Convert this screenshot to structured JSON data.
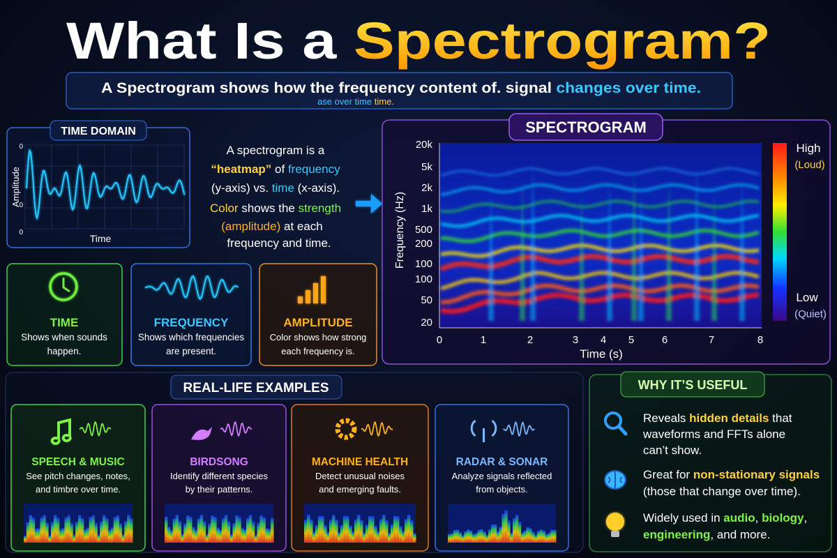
{
  "header": {
    "title": [
      "What Is a ",
      "Spectrogram?"
    ],
    "subtitle": [
      "A Spectrogram shows how the frequency content of. signal ",
      "changes over time."
    ],
    "subtitle_echo": [
      "ase over time ",
      "time."
    ]
  },
  "time_domain": {
    "label": "TIME DOMAIN",
    "y_axis": "Amplitude",
    "x_axis": "Time",
    "ticks": [
      "0",
      "0",
      "0"
    ]
  },
  "description": {
    "lines": [
      [
        "A spectrogram is a"
      ],
      [
        "“heatmap”",
        " of ",
        "frequency"
      ],
      [
        "(y-axis) vs. ",
        "time",
        " (x-axis)."
      ],
      [
        "Color",
        " shows the ",
        "strength"
      ],
      [
        "(amplitude)",
        " at each"
      ],
      [
        "frequency and time."
      ]
    ]
  },
  "concepts": [
    {
      "title": "TIME",
      "text": [
        "Shows when sounds",
        "happen."
      ]
    },
    {
      "title": "FREQUENCY",
      "text": [
        "Shows which frequencies",
        "are present."
      ]
    },
    {
      "title": "AMPLITUDE",
      "text": [
        "Color shows how strong",
        "each frequency is."
      ]
    }
  ],
  "spectrogram": {
    "title": "SPECTROGRAM",
    "y_axis": "Frequency (Hz)",
    "x_axis": "Time (s)",
    "yticks": [
      "20k",
      "5k",
      "2k",
      "1k",
      "500",
      "200",
      "100",
      "100",
      "50",
      "20"
    ],
    "xticks": [
      "0",
      "1",
      "2",
      "3",
      "4",
      "5",
      "6",
      "7",
      "8"
    ],
    "colorbar": {
      "high": "High",
      "high_note": "(Loud)",
      "low": "Low",
      "low_note": "(Quiet)"
    }
  },
  "examples": {
    "title": "REAL-LIFE EXAMPLES",
    "items": [
      {
        "title": "SPEECH & MUSIC",
        "text": [
          "See pitch changes, notes,",
          "and timbre over time."
        ]
      },
      {
        "title": "BIRDSONG",
        "text": [
          "Identify different species",
          "by their patterns."
        ]
      },
      {
        "title": "MACHINE HEALTH",
        "text": [
          "Detect unusual noises",
          "and emerging faults."
        ]
      },
      {
        "title": "RADAR & SONAR",
        "text": [
          "Analyze signals reflected",
          "from objects."
        ]
      }
    ]
  },
  "usefulness": {
    "title": "WHY IT’S USEFUL",
    "items": [
      {
        "lines": [
          [
            "Reveals ",
            "hidden details",
            " that"
          ],
          [
            "waveforms and FFTs alone"
          ],
          [
            "can’t show."
          ]
        ]
      },
      {
        "lines": [
          [
            "Great for ",
            "non-stationary signals"
          ],
          [
            "(those that change over time)."
          ]
        ]
      },
      {
        "lines": [
          [
            "Widely used in ",
            "audio",
            ", ",
            "biology",
            ","
          ],
          [
            "engineering",
            ", and more."
          ]
        ]
      }
    ]
  }
}
